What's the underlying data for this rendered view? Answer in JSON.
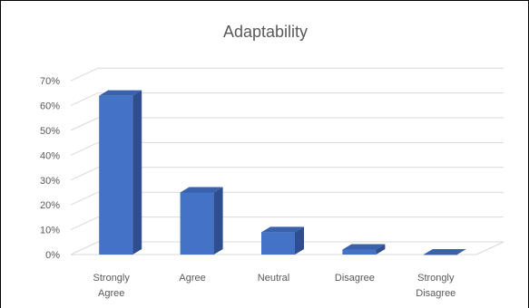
{
  "chart_data": {
    "type": "bar",
    "title": "Adaptability",
    "categories": [
      [
        "Strongly",
        "Agree"
      ],
      [
        "Agree"
      ],
      [
        "Neutral"
      ],
      [
        "Disagree"
      ],
      [
        "Strongly",
        "Disagree"
      ]
    ],
    "values": [
      64,
      25,
      9,
      2,
      0
    ],
    "ytick_labels": [
      "0%",
      "10%",
      "20%",
      "30%",
      "40%",
      "50%",
      "60%",
      "70%"
    ],
    "ylim": [
      0,
      70
    ],
    "grid": true,
    "legend": "none",
    "colors": {
      "bar_front": "#4472C4",
      "bar_side": "#2F4E8F",
      "bar_top": "#3A62AC",
      "grid": "#D9D9D9",
      "text": "#595959"
    }
  }
}
